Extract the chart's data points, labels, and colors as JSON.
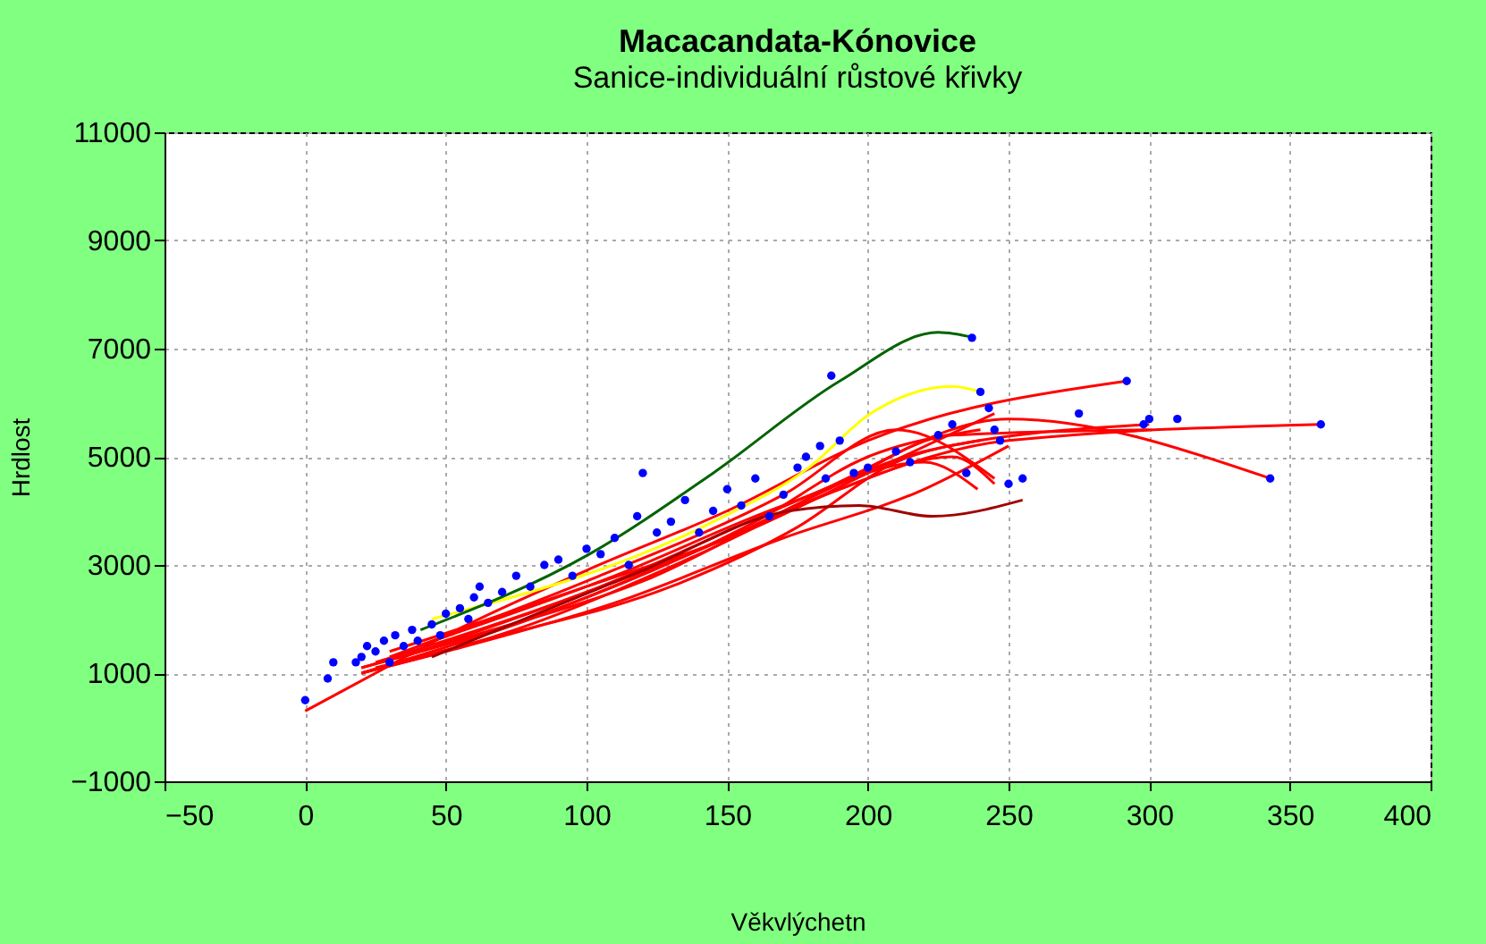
{
  "chart_data": {
    "type": "line",
    "title": "Macacandata-Kónovice",
    "subtitle": "Sanice-individuální růstové křivky",
    "xlabel": "Věkvlýchetn",
    "ylabel": "Hrdlost",
    "xlim": [
      -50,
      400
    ],
    "xticks": [
      -50,
      0,
      50,
      100,
      150,
      200,
      250,
      300,
      350,
      400
    ],
    "ylim": [
      -1000,
      11000
    ],
    "yticks": [
      -1000,
      1000,
      3000,
      5000,
      7000,
      9000,
      11000
    ],
    "grid": true,
    "marker": "none",
    "line_style": "solid",
    "series": [
      {
        "color": "#ff0000",
        "x": [
          0,
          25,
          50,
          100,
          150,
          200,
          292
        ],
        "values": [
          300,
          1000,
          1700,
          2900,
          4000,
          5300,
          6400
        ]
      },
      {
        "color": "#ff0000",
        "x": [
          20,
          60,
          120,
          180,
          250,
          361
        ],
        "values": [
          1100,
          1700,
          2700,
          4200,
          5300,
          5600
        ]
      },
      {
        "color": "#ff0000",
        "x": [
          20,
          80,
          150,
          220,
          300
        ],
        "values": [
          1000,
          2000,
          3500,
          5100,
          5600
        ]
      },
      {
        "color": "#ff0000",
        "x": [
          25,
          100,
          180,
          250,
          343
        ],
        "values": [
          1200,
          2500,
          4300,
          5700,
          4600
        ]
      },
      {
        "color": "#ff0000",
        "x": [
          20,
          90,
          160,
          200,
          240
        ],
        "values": [
          1100,
          2200,
          3800,
          5000,
          5500
        ]
      },
      {
        "color": "#ff0000",
        "x": [
          30,
          100,
          170,
          210,
          245
        ],
        "values": [
          1300,
          2700,
          4300,
          5500,
          4600
        ]
      },
      {
        "color": "#ff0000",
        "x": [
          20,
          80,
          140,
          190,
          230,
          245
        ],
        "values": [
          1000,
          1900,
          3200,
          4400,
          5000,
          4500
        ]
      },
      {
        "color": "#ff0000",
        "x": [
          40,
          110,
          170,
          220,
          239
        ],
        "values": [
          1500,
          2800,
          4100,
          4900,
          4400
        ]
      },
      {
        "color": "#ff0000",
        "x": [
          25,
          70,
          130,
          175,
          210,
          240
        ],
        "values": [
          1100,
          1700,
          2600,
          3700,
          4900,
          5300
        ]
      },
      {
        "color": "#ff0000",
        "x": [
          30,
          100,
          160,
          200,
          245
        ],
        "values": [
          1400,
          2600,
          3700,
          4700,
          5800
        ]
      },
      {
        "color": "#ff0000",
        "x": [
          20,
          50,
          110,
          170,
          220,
          250
        ],
        "values": [
          1000,
          1400,
          2300,
          3500,
          4400,
          5200
        ]
      },
      {
        "color": "#ff0000",
        "x": [
          35,
          90,
          150,
          190,
          230,
          300
        ],
        "values": [
          1300,
          2300,
          3500,
          4500,
          5400,
          5500
        ]
      },
      {
        "color": "#ffff00",
        "x": [
          45,
          145,
          179,
          201,
          230,
          240
        ],
        "values": [
          2000,
          3800,
          4800,
          5800,
          6300,
          6200
        ]
      },
      {
        "color": "#a00000",
        "x": [
          45,
          120,
          172,
          197,
          223,
          255
        ],
        "values": [
          1300,
          2900,
          4000,
          4100,
          3900,
          4200
        ]
      },
      {
        "color": "#006400",
        "x": [
          41,
          101,
          145,
          190,
          225,
          238
        ],
        "values": [
          1800,
          3200,
          4700,
          6400,
          7300,
          7200
        ]
      },
      {
        "type": "scatter",
        "marker": "circle",
        "color": "#0000ff",
        "x": [
          0,
          8,
          10,
          18,
          20,
          22,
          25,
          28,
          30,
          32,
          35,
          38,
          40,
          45,
          48,
          50,
          55,
          58,
          60,
          62,
          65,
          70,
          75,
          80,
          85,
          90,
          95,
          100,
          105,
          110,
          115,
          120,
          118,
          125,
          130,
          135,
          140,
          145,
          150,
          155,
          160,
          165,
          170,
          175,
          178,
          183,
          185,
          190,
          187,
          195,
          200,
          210,
          215,
          225,
          230,
          235,
          237,
          240,
          243,
          245,
          247,
          250,
          255,
          275,
          292,
          298,
          300,
          310,
          343,
          361
        ],
        "values": [
          500,
          900,
          1200,
          1200,
          1300,
          1500,
          1400,
          1600,
          1200,
          1700,
          1500,
          1800,
          1600,
          1900,
          1700,
          2100,
          2200,
          2000,
          2400,
          2600,
          2300,
          2500,
          2800,
          2600,
          3000,
          3100,
          2800,
          3300,
          3200,
          3500,
          3000,
          4700,
          3900,
          3600,
          3800,
          4200,
          3600,
          4000,
          4400,
          4100,
          4600,
          3900,
          4300,
          4800,
          5000,
          5200,
          4600,
          5300,
          6500,
          4700,
          4800,
          5100,
          4900,
          5400,
          5600,
          4700,
          7200,
          6200,
          5900,
          5500,
          5300,
          4500,
          4600,
          5800,
          6400,
          5600,
          5700,
          5700,
          4600,
          5600
        ]
      }
    ]
  }
}
